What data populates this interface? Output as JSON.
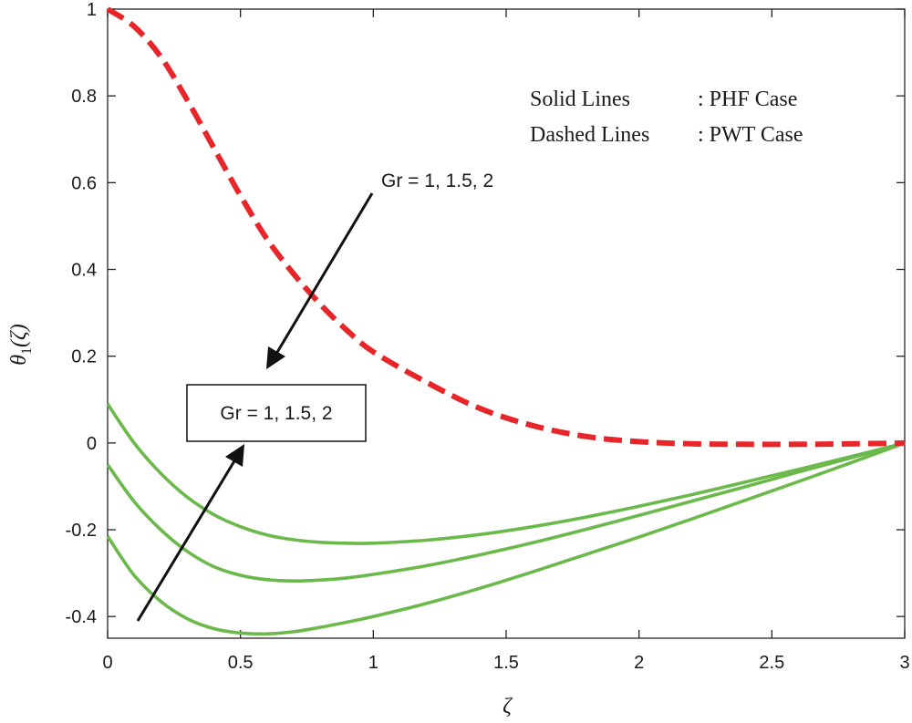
{
  "chart_data": {
    "type": "line",
    "xlabel": "ζ",
    "ylabel_main": "θ",
    "ylabel_sub": "1",
    "ylabel_arg": "(ζ)",
    "xlim": [
      0,
      3
    ],
    "ylim": [
      -0.45,
      1
    ],
    "x_ticks": [
      0,
      0.5,
      1,
      1.5,
      2,
      2.5,
      3
    ],
    "x_tick_labels": [
      "0",
      "0.5",
      "1",
      "1.5",
      "2",
      "2.5",
      "3"
    ],
    "y_ticks": [
      -0.4,
      -0.2,
      0,
      0.2,
      0.4,
      0.6,
      0.8,
      1
    ],
    "y_tick_labels": [
      "-0.4",
      "-0.2",
      "0",
      "0.2",
      "0.4",
      "0.6",
      "0.8",
      "1"
    ],
    "grid": false,
    "colors": {
      "solid": "#6ab94a",
      "dashed": "#e8262a"
    },
    "series": [
      {
        "style": "solid",
        "x": [
          0,
          0.1,
          0.2,
          0.3,
          0.4,
          0.5,
          0.6,
          0.7,
          0.8,
          0.9,
          1.0,
          1.2,
          1.4,
          1.6,
          1.8,
          2.0,
          2.2,
          2.4,
          2.6,
          2.8,
          3.0
        ],
        "y": [
          0.09,
          0.0,
          -0.07,
          -0.125,
          -0.165,
          -0.193,
          -0.212,
          -0.223,
          -0.229,
          -0.231,
          -0.231,
          -0.224,
          -0.211,
          -0.193,
          -0.171,
          -0.146,
          -0.119,
          -0.09,
          -0.061,
          -0.031,
          0.0
        ]
      },
      {
        "style": "solid",
        "x": [
          0,
          0.1,
          0.2,
          0.3,
          0.4,
          0.5,
          0.6,
          0.7,
          0.8,
          0.9,
          1.0,
          1.2,
          1.4,
          1.6,
          1.8,
          2.0,
          2.2,
          2.4,
          2.6,
          2.8,
          3.0
        ],
        "y": [
          -0.05,
          -0.135,
          -0.2,
          -0.25,
          -0.285,
          -0.305,
          -0.315,
          -0.318,
          -0.316,
          -0.311,
          -0.303,
          -0.283,
          -0.258,
          -0.23,
          -0.199,
          -0.167,
          -0.134,
          -0.101,
          -0.067,
          -0.034,
          0.0
        ]
      },
      {
        "style": "solid",
        "x": [
          0,
          0.1,
          0.2,
          0.3,
          0.4,
          0.5,
          0.6,
          0.7,
          0.8,
          0.9,
          1.0,
          1.2,
          1.4,
          1.6,
          1.8,
          2.0,
          2.2,
          2.4,
          2.6,
          2.8,
          3.0
        ],
        "y": [
          -0.215,
          -0.305,
          -0.365,
          -0.405,
          -0.428,
          -0.438,
          -0.44,
          -0.435,
          -0.425,
          -0.413,
          -0.4,
          -0.37,
          -0.335,
          -0.297,
          -0.257,
          -0.217,
          -0.175,
          -0.132,
          -0.089,
          -0.045,
          0.0
        ]
      },
      {
        "style": "dashed",
        "x": [
          0,
          0.1,
          0.2,
          0.3,
          0.4,
          0.5,
          0.6,
          0.7,
          0.8,
          0.9,
          1.0,
          1.2,
          1.4,
          1.6,
          1.8,
          2.0,
          2.2,
          2.4,
          2.6,
          2.8,
          3.0
        ],
        "y": [
          1.0,
          0.96,
          0.89,
          0.79,
          0.68,
          0.57,
          0.47,
          0.39,
          0.32,
          0.26,
          0.21,
          0.14,
          0.08,
          0.04,
          0.015,
          0.003,
          -0.002,
          -0.003,
          -0.003,
          -0.002,
          0.0
        ]
      }
    ],
    "annotations": {
      "legend_line1_left": "Solid Lines",
      "legend_line1_right": ": PHF Case",
      "legend_line2_left": "Dashed Lines",
      "legend_line2_right": ": PWT Case",
      "arrow_top_label": "Gr = 1, 1.5, 2",
      "box_label": "Gr = 1, 1.5, 2"
    }
  }
}
